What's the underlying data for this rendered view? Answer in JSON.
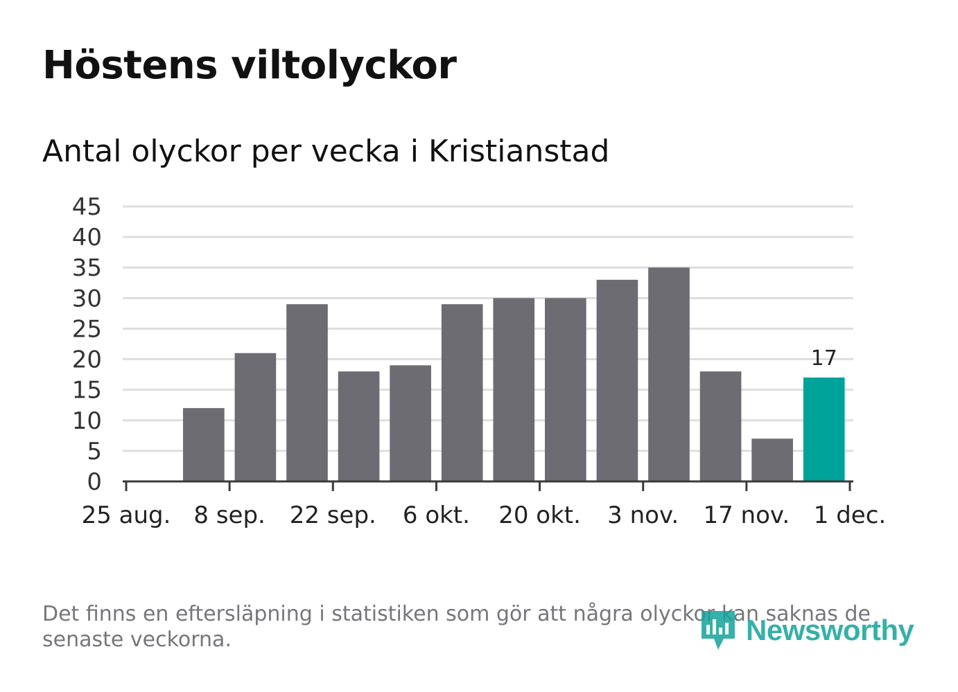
{
  "title": "Höstens viltolyckor",
  "subtitle": "Antal olyckor per vecka i Kristianstad",
  "footnote": "Det finns en eftersläpning i statistiken som gör att några olyckor kan saknas de senaste veckorna.",
  "logo": {
    "text": "Newsworthy",
    "icon": "newsworthy-logo-icon"
  },
  "colors": {
    "bar": "#6d6c72",
    "highlight": "#00a39a",
    "grid": "#dedede",
    "axis": "#3a3a3a"
  },
  "chart_data": {
    "type": "bar",
    "title": "Antal olyckor per vecka i Kristianstad",
    "xlabel": "",
    "ylabel": "",
    "x_unit": "days since 25 aug.",
    "ylim": [
      0,
      45
    ],
    "xlim": [
      0,
      98
    ],
    "yticks": [
      "0",
      "5",
      "10",
      "15",
      "20",
      "25",
      "30",
      "35",
      "40",
      "45"
    ],
    "xticks": [
      {
        "label": "25 aug.",
        "x": 0
      },
      {
        "label": "8 sep.",
        "x": 14
      },
      {
        "label": "22 sep.",
        "x": 28
      },
      {
        "label": "6 okt.",
        "x": 42
      },
      {
        "label": "20 okt.",
        "x": 56
      },
      {
        "label": "3 nov.",
        "x": 70
      },
      {
        "label": "17 nov.",
        "x": 84
      },
      {
        "label": "1 dec.",
        "x": 98
      }
    ],
    "bars": [
      {
        "week_start": 7,
        "value": 12
      },
      {
        "week_start": 14,
        "value": 21
      },
      {
        "week_start": 21,
        "value": 29
      },
      {
        "week_start": 28,
        "value": 18
      },
      {
        "week_start": 35,
        "value": 19
      },
      {
        "week_start": 42,
        "value": 29
      },
      {
        "week_start": 49,
        "value": 30
      },
      {
        "week_start": 56,
        "value": 30
      },
      {
        "week_start": 63,
        "value": 33
      },
      {
        "week_start": 70,
        "value": 35
      },
      {
        "week_start": 77,
        "value": 18
      },
      {
        "week_start": 84,
        "value": 7
      },
      {
        "week_start": 91,
        "value": 17,
        "highlight": true
      }
    ],
    "data_labels": [
      {
        "bar_index": 12,
        "text": "17"
      }
    ],
    "grid": true,
    "legend": "none"
  }
}
